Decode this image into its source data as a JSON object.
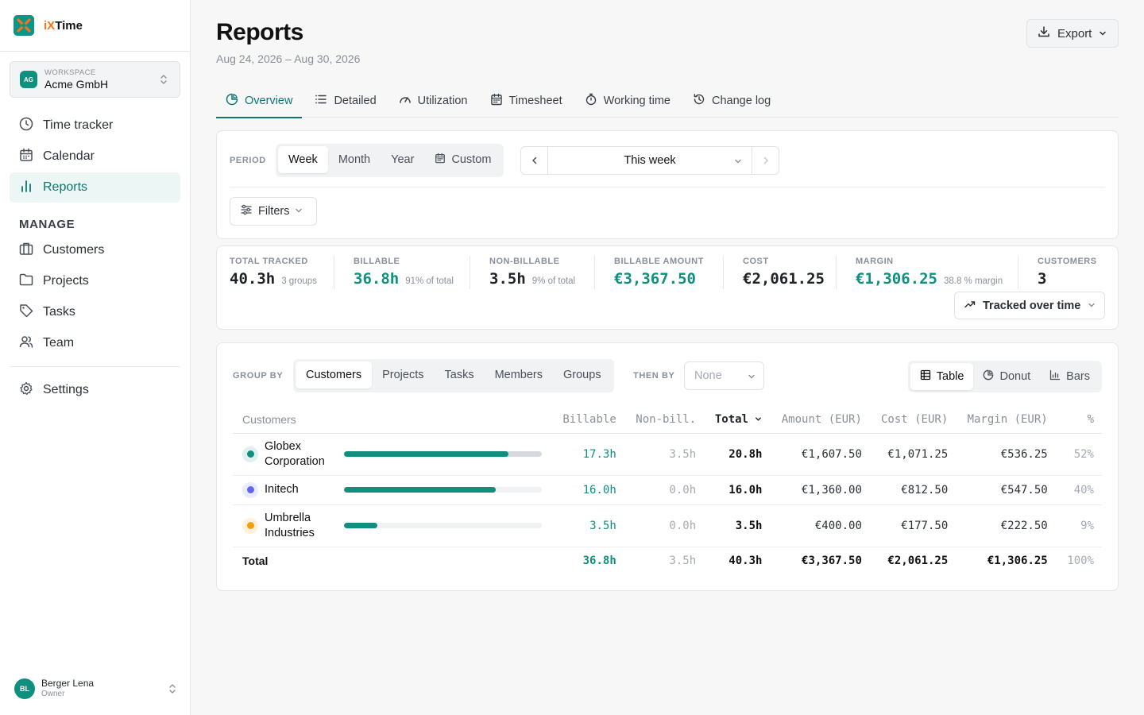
{
  "brand": {
    "name_prefix": "iX",
    "name_suffix": "Time"
  },
  "workspace": {
    "label": "WORKSPACE",
    "name": "Acme GmbH",
    "initials": "AG"
  },
  "nav": {
    "main": [
      {
        "label": "Time tracker",
        "icon": "clock-icon"
      },
      {
        "label": "Calendar",
        "icon": "calendar-icon"
      },
      {
        "label": "Reports",
        "icon": "bar-chart-icon",
        "active": true
      }
    ],
    "manage_heading": "MANAGE",
    "manage": [
      {
        "label": "Customers",
        "icon": "briefcase-icon"
      },
      {
        "label": "Projects",
        "icon": "folder-icon"
      },
      {
        "label": "Tasks",
        "icon": "tag-icon"
      },
      {
        "label": "Team",
        "icon": "users-icon"
      }
    ],
    "settings": {
      "label": "Settings",
      "icon": "gear-icon"
    }
  },
  "user": {
    "name": "Berger Lena",
    "role": "Owner",
    "initials": "BL"
  },
  "page": {
    "title": "Reports",
    "date_range": "Aug 24, 2026 – Aug 30, 2026",
    "export_label": "Export"
  },
  "tabs": [
    {
      "label": "Overview",
      "icon": "pie-icon",
      "active": true
    },
    {
      "label": "Detailed",
      "icon": "list-icon"
    },
    {
      "label": "Utilization",
      "icon": "gauge-icon"
    },
    {
      "label": "Timesheet",
      "icon": "calendar-icon"
    },
    {
      "label": "Working time",
      "icon": "stopwatch-icon"
    },
    {
      "label": "Change log",
      "icon": "history-icon"
    }
  ],
  "period": {
    "label": "PERIOD",
    "options": [
      "Week",
      "Month",
      "Year",
      "Custom"
    ],
    "selected": "Week",
    "range_label": "This week",
    "filters_label": "Filters"
  },
  "stats": {
    "total_tracked": {
      "label": "TOTAL TRACKED",
      "value": "40.3h",
      "sub": "3 groups"
    },
    "billable": {
      "label": "BILLABLE",
      "value": "36.8h",
      "sub": "91% of total"
    },
    "non_billable": {
      "label": "NON-BILLABLE",
      "value": "3.5h",
      "sub": "9% of total"
    },
    "billable_amount": {
      "label": "BILLABLE AMOUNT",
      "value": "€3,367.50"
    },
    "cost": {
      "label": "COST",
      "value": "€2,061.25"
    },
    "margin": {
      "label": "MARGIN",
      "value": "€1,306.25",
      "sub": "38.8 % margin"
    },
    "customers": {
      "label": "CUSTOMERS",
      "value": "3"
    },
    "chart_toggle_label": "Tracked over time"
  },
  "grouping": {
    "group_by_label": "GROUP BY",
    "group_by_options": [
      "Customers",
      "Projects",
      "Tasks",
      "Members",
      "Groups"
    ],
    "group_by_selected": "Customers",
    "then_by_label": "THEN BY",
    "then_by_value": "None",
    "view_options": [
      {
        "label": "Table",
        "icon": "table-icon",
        "active": true
      },
      {
        "label": "Donut",
        "icon": "pie-icon"
      },
      {
        "label": "Bars",
        "icon": "bar-chart-icon"
      }
    ]
  },
  "table": {
    "columns": [
      "Customers",
      "Billable",
      "Non-bill.",
      "Total",
      "Amount (EUR)",
      "Cost (EUR)",
      "Margin (EUR)",
      "%"
    ],
    "rows": [
      {
        "name": "Globex Corporation",
        "color": "#0f8f7e",
        "billable": "17.3h",
        "non_billable": "3.5h",
        "total": "20.8h",
        "amount": "€1,607.50",
        "cost": "€1,071.25",
        "margin": "€536.25",
        "pct": "52%",
        "billable_frac": 0.832,
        "total_frac": 1.0,
        "tall": true
      },
      {
        "name": "Initech",
        "color": "#6366f1",
        "billable": "16.0h",
        "non_billable": "0.0h",
        "total": "16.0h",
        "amount": "€1,360.00",
        "cost": "€812.50",
        "margin": "€547.50",
        "pct": "40%",
        "billable_frac": 0.769,
        "total_frac": 0.769,
        "tall": false
      },
      {
        "name": "Umbrella Industries",
        "color": "#f59e0b",
        "billable": "3.5h",
        "non_billable": "0.0h",
        "total": "3.5h",
        "amount": "€400.00",
        "cost": "€177.50",
        "margin": "€222.50",
        "pct": "9%",
        "billable_frac": 0.168,
        "total_frac": 0.168,
        "tall": true
      }
    ],
    "total": {
      "label": "Total",
      "billable": "36.8h",
      "non_billable": "3.5h",
      "total": "40.3h",
      "amount": "€3,367.50",
      "cost": "€2,061.25",
      "margin": "€1,306.25",
      "pct": "100%"
    }
  }
}
